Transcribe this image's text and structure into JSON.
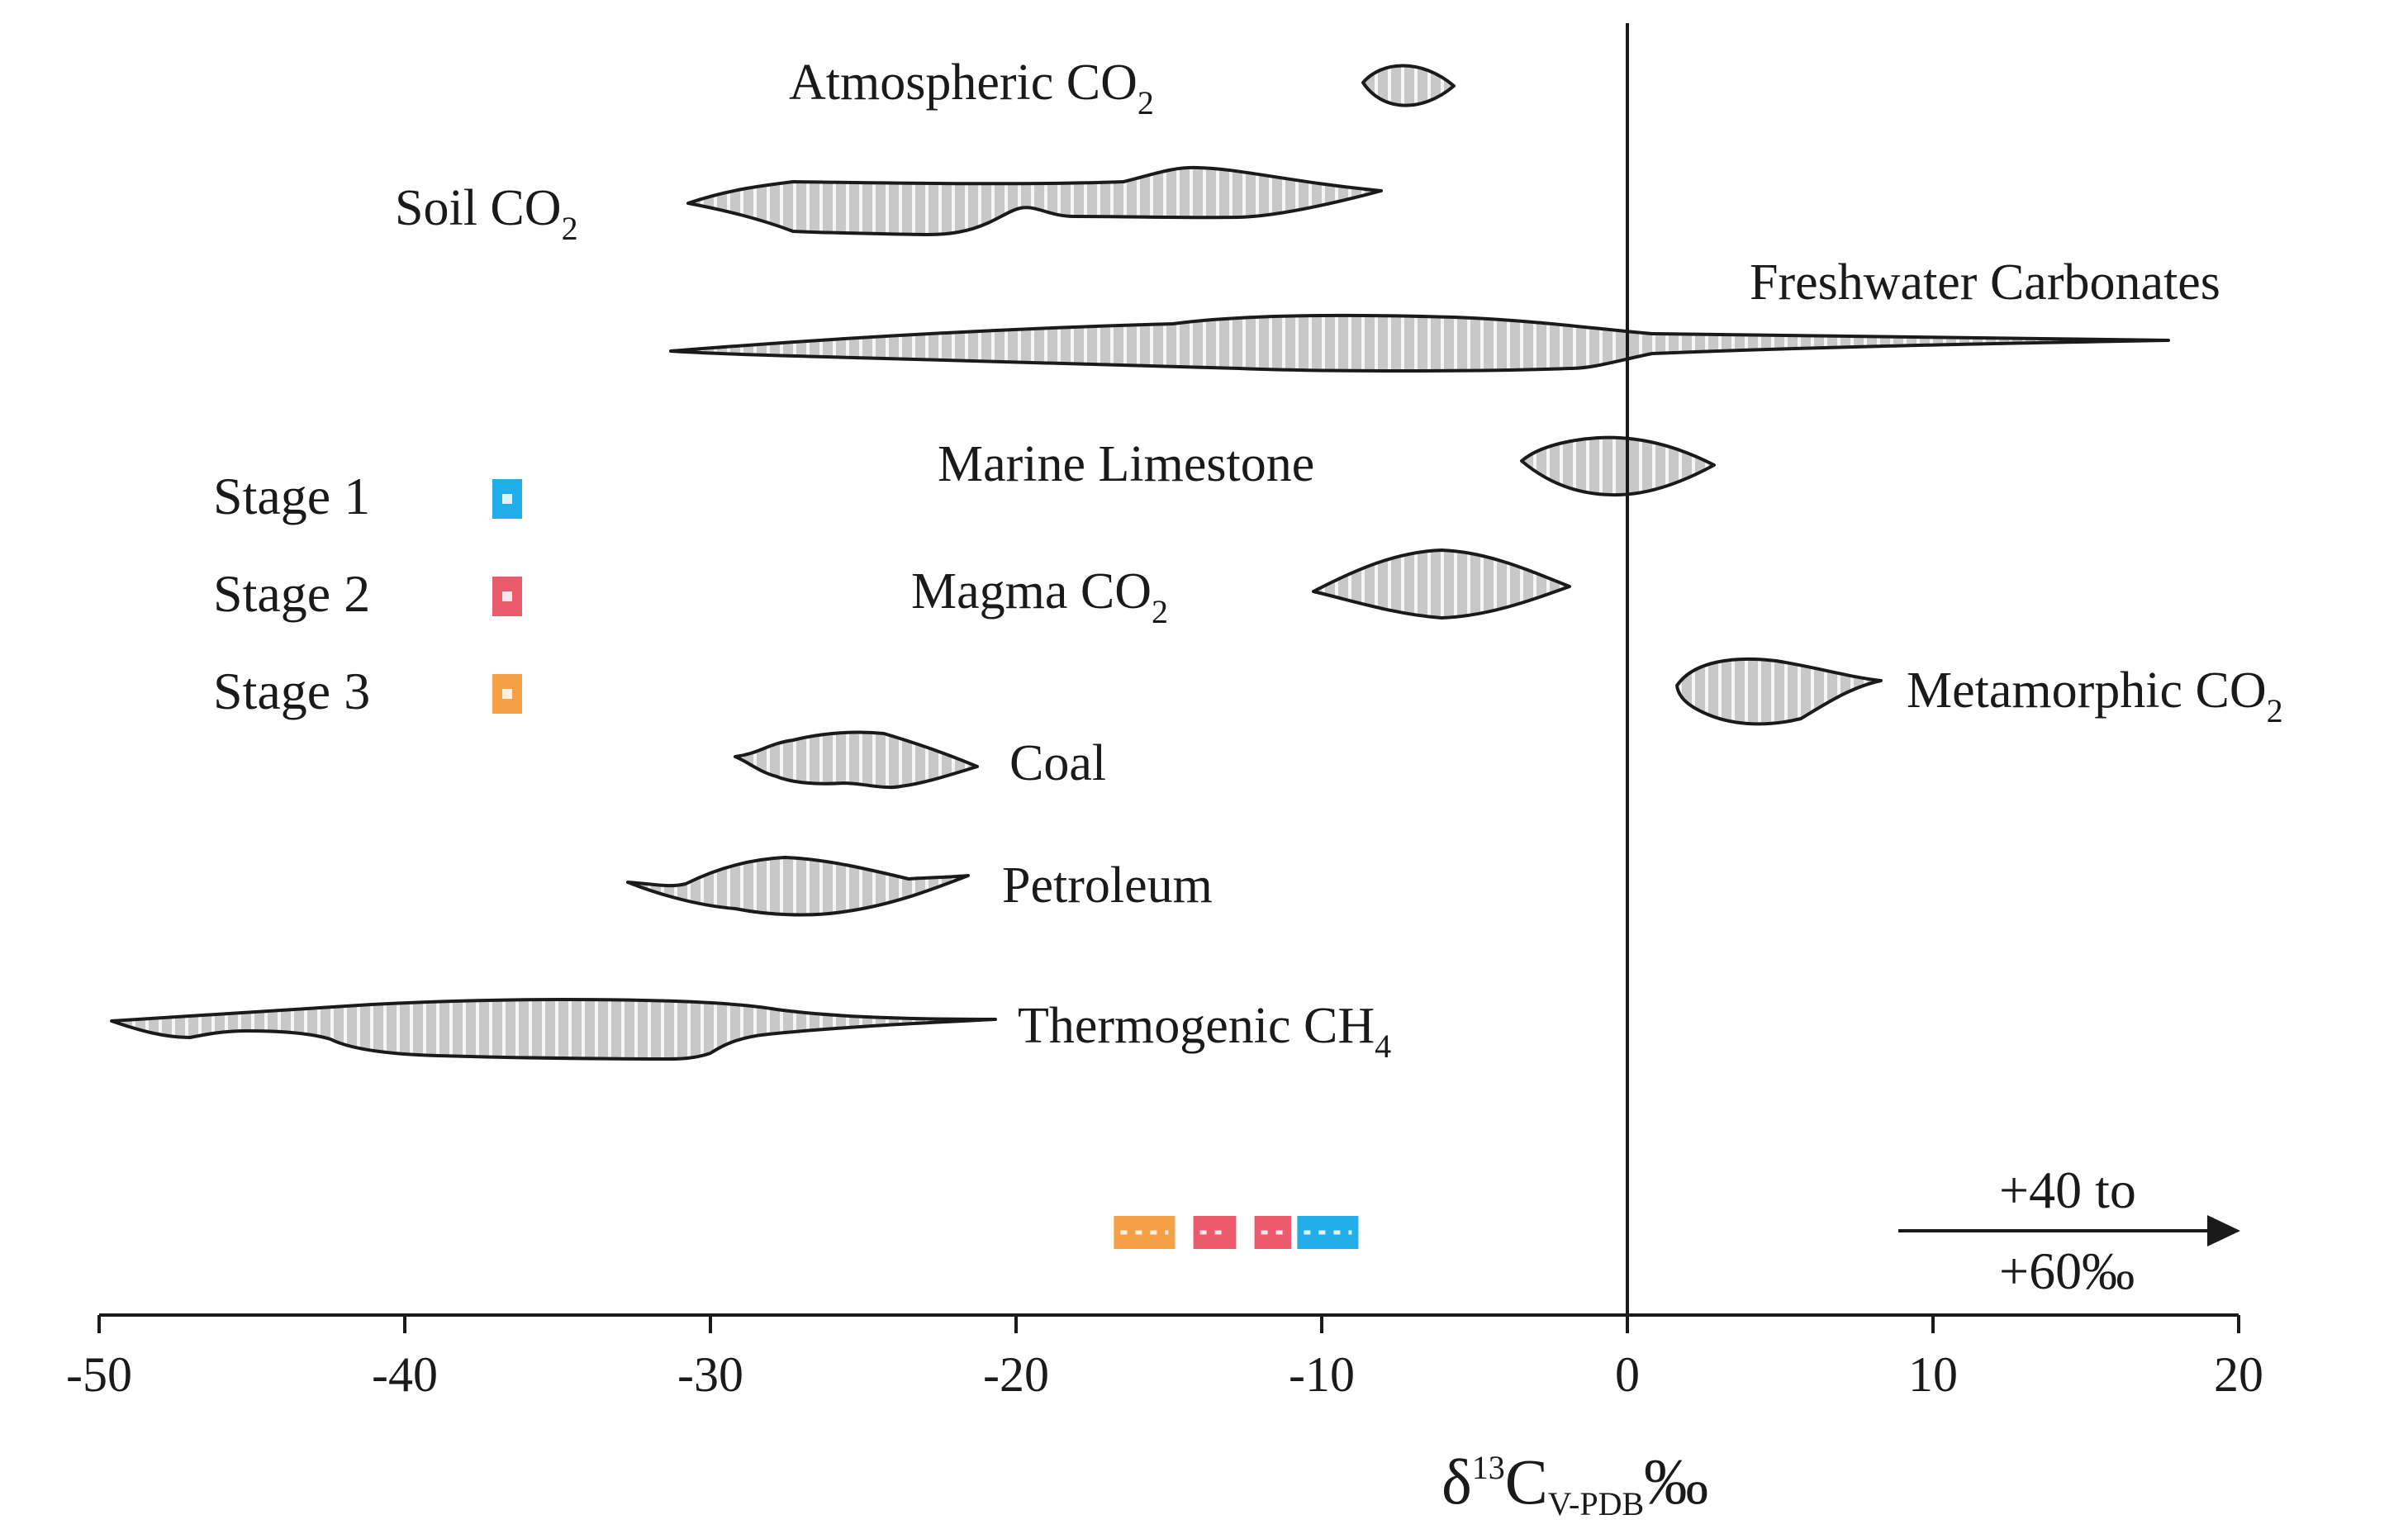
{
  "chart_data": {
    "type": "range",
    "title": "",
    "xlabel": {
      "main": "δ",
      "sup": "13",
      "c": "C",
      "sub": "V-PDB",
      "unit": "‰"
    },
    "xlim": [
      -50,
      20
    ],
    "xticks": [
      -50,
      -40,
      -30,
      -20,
      -10,
      0,
      10,
      20
    ],
    "xtick_labels": [
      "-50",
      "-40",
      "-30",
      "-20",
      "-10",
      "0",
      "10",
      "20"
    ],
    "reference_line_x": 0,
    "sources": [
      {
        "name": "Atmospheric CO",
        "sub": "2",
        "min": -8.5,
        "max": -5.5
      },
      {
        "name": "Soil CO",
        "sub": "2",
        "min": -30.5,
        "max": -8
      },
      {
        "name": "Freshwater Carbonates",
        "sub": "",
        "min": -31,
        "max": 18
      },
      {
        "name": "Marine Limestone",
        "sub": "",
        "min": -3,
        "max": 3
      },
      {
        "name": "Magma CO",
        "sub": "2",
        "min": -10,
        "max": -2
      },
      {
        "name": "Metamorphic CO",
        "sub": "2",
        "min": 2,
        "max": 8.5
      },
      {
        "name": "Coal",
        "sub": "",
        "min": -29,
        "max": -21
      },
      {
        "name": "Petroleum",
        "sub": "",
        "min": -32.5,
        "max": -21.5
      },
      {
        "name": "Thermogenic CH",
        "sub": "4",
        "min": -50,
        "max": -20.5
      }
    ],
    "stages": [
      {
        "name": "Stage 1",
        "color": "#22aee8",
        "ranges": [
          [
            -10.8,
            -8.8
          ]
        ]
      },
      {
        "name": "Stage 2",
        "color": "#ec5a6e",
        "ranges": [
          [
            -14.2,
            -12.8
          ],
          [
            -12.2,
            -11
          ]
        ]
      },
      {
        "name": "Stage 3",
        "color": "#f6a046",
        "ranges": [
          [
            -16.8,
            -14.8
          ]
        ]
      }
    ],
    "annotation": {
      "line1": "+40 to",
      "line2": "+60‰"
    }
  }
}
